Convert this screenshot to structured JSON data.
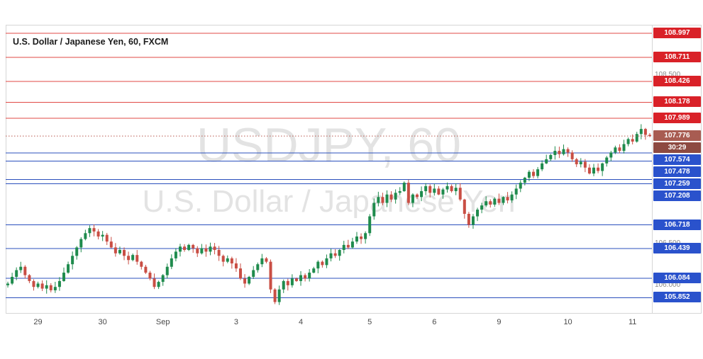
{
  "header": {
    "symbol_title": "U.S. Dollar / Japanese Yen, 60, FXCM"
  },
  "watermark": {
    "line1": "USDJPY, 60",
    "line2": "U.S. Dollar / Japanese Yen"
  },
  "last_price": {
    "label": "107.776",
    "countdown": "30:29",
    "price": 107.776
  },
  "price_axis": {
    "gray_labels": [
      {
        "label": "108.500",
        "price": 108.5
      },
      {
        "label": "106.500",
        "price": 106.5
      },
      {
        "label": "106.000",
        "price": 106.0
      }
    ]
  },
  "colors": {
    "up_candle": "#1f8b4d",
    "down_candle": "#c94e44",
    "resistance_line": "#e04a45",
    "support_line": "#2b50bd",
    "resistance_badge": "#d92128",
    "support_badge": "#2a52cc",
    "last_badge": "#a85c52",
    "countdown_badge": "#8d4a41",
    "last_line": "#b9574d",
    "watermark": "#e3e3e3",
    "frame": "#d6d6d6"
  },
  "chart_data": {
    "type": "candlestick",
    "title": "U.S. Dollar / Japanese Yen, 60, FXCM",
    "symbol": "USDJPY",
    "interval": "60",
    "provider": "FXCM",
    "price_range": [
      105.67,
      109.1
    ],
    "x_tick_labels": [
      "29",
      "30",
      "Sep",
      "3",
      "4",
      "5",
      "6",
      "9",
      "10",
      "11"
    ],
    "x_tick_indices": [
      7,
      22,
      36,
      53,
      68,
      84,
      99,
      114,
      130,
      145
    ],
    "resistance_levels": [
      {
        "price": 108.997,
        "label": "108.997"
      },
      {
        "price": 108.711,
        "label": "108.711"
      },
      {
        "price": 108.426,
        "label": "108.426"
      },
      {
        "price": 108.178,
        "label": "108.178"
      },
      {
        "price": 107.989,
        "label": "107.989"
      }
    ],
    "support_levels": [
      {
        "price": 107.574,
        "label": "107.574"
      },
      {
        "price": 107.478,
        "label": "107.478"
      },
      {
        "price": 107.259,
        "label": "107.259"
      },
      {
        "price": 107.208,
        "label": "107.208"
      },
      {
        "price": 106.718,
        "label": "106.718"
      },
      {
        "price": 106.439,
        "label": "106.439"
      },
      {
        "price": 106.084,
        "label": "106.084"
      },
      {
        "price": 105.852,
        "label": "105.852"
      }
    ],
    "last_close": 107.776,
    "first_open": 106.0,
    "closes": [
      106.02,
      106.1,
      106.18,
      106.22,
      106.12,
      106.05,
      105.98,
      106.02,
      105.96,
      106.0,
      105.94,
      105.98,
      106.05,
      106.15,
      106.25,
      106.35,
      106.45,
      106.55,
      106.62,
      106.68,
      106.64,
      106.58,
      106.6,
      106.52,
      106.45,
      106.38,
      106.42,
      106.35,
      106.3,
      106.36,
      106.28,
      106.22,
      106.15,
      106.08,
      105.98,
      106.04,
      106.12,
      106.22,
      106.32,
      106.4,
      106.46,
      106.42,
      106.48,
      106.44,
      106.38,
      106.44,
      106.4,
      106.46,
      106.42,
      106.35,
      106.28,
      106.32,
      106.26,
      106.2,
      106.08,
      106.02,
      106.1,
      106.18,
      106.25,
      106.32,
      106.28,
      105.95,
      105.8,
      105.95,
      106.05,
      106.0,
      106.08,
      106.05,
      106.12,
      106.08,
      106.15,
      106.2,
      106.28,
      106.24,
      106.32,
      106.38,
      106.35,
      106.42,
      106.48,
      106.45,
      106.52,
      106.58,
      106.55,
      106.62,
      106.82,
      106.98,
      107.05,
      106.98,
      107.08,
      107.02,
      107.1,
      107.12,
      107.22,
      106.98,
      107.08,
      107.05,
      107.12,
      107.18,
      107.1,
      107.15,
      107.08,
      107.14,
      107.18,
      107.12,
      107.16,
      107.02,
      106.85,
      106.72,
      106.82,
      106.9,
      106.95,
      107.0,
      106.96,
      107.03,
      106.98,
      107.05,
      107.01,
      107.08,
      107.15,
      107.22,
      107.28,
      107.35,
      107.3,
      107.38,
      107.45,
      107.5,
      107.55,
      107.6,
      107.56,
      107.62,
      107.58,
      107.5,
      107.44,
      107.47,
      107.4,
      107.33,
      107.4,
      107.36,
      107.45,
      107.52,
      107.58,
      107.64,
      107.6,
      107.68,
      107.74,
      107.71,
      107.8,
      107.86,
      107.79,
      107.776
    ]
  }
}
